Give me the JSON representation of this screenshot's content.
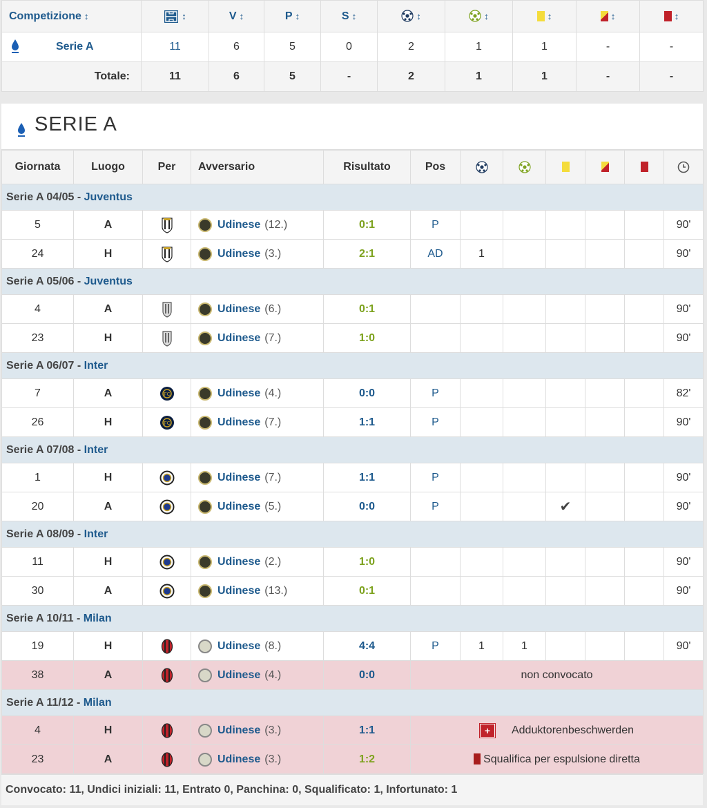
{
  "summary": {
    "headers": [
      "Competizione",
      "V",
      "P",
      "S"
    ],
    "sort_arrow": "↕",
    "rows": [
      {
        "competition": "Serie A",
        "apps": "11",
        "v": "6",
        "p": "5",
        "s": "0",
        "goals": "2",
        "assists": "1",
        "yellow": "1",
        "yellowred": "-",
        "red": "-"
      }
    ],
    "totals": {
      "label": "Totale:",
      "apps": "11",
      "v": "6",
      "p": "5",
      "s": "-",
      "goals": "2",
      "assists": "1",
      "yellow": "1",
      "yellowred": "-",
      "red": "-"
    }
  },
  "detail": {
    "title": "SERIE A",
    "columns": [
      "Giornata",
      "Luogo",
      "Per",
      "Avversario",
      "Risultato",
      "Pos"
    ],
    "seasons": [
      {
        "label": "Serie A 04/05 - ",
        "team": "Juventus",
        "crest": "juventus-old",
        "games": [
          {
            "day": "5",
            "venue": "A",
            "opp": "Udinese",
            "rank": "(12.)",
            "result": "0:1",
            "rclass": "win",
            "pos": "P",
            "goals": "",
            "assists": "",
            "yellow": "",
            "mins": "90'"
          },
          {
            "day": "24",
            "venue": "H",
            "opp": "Udinese",
            "rank": "(3.)",
            "result": "2:1",
            "rclass": "win",
            "pos": "AD",
            "goals": "1",
            "assists": "",
            "yellow": "",
            "mins": "90'"
          }
        ]
      },
      {
        "label": "Serie A 05/06 - ",
        "team": "Juventus",
        "crest": "juventus-grey",
        "games": [
          {
            "day": "4",
            "venue": "A",
            "opp": "Udinese",
            "rank": "(6.)",
            "result": "0:1",
            "rclass": "win",
            "pos": "",
            "goals": "",
            "assists": "",
            "yellow": "",
            "mins": "90'"
          },
          {
            "day": "23",
            "venue": "H",
            "opp": "Udinese",
            "rank": "(7.)",
            "result": "1:0",
            "rclass": "win",
            "pos": "",
            "goals": "",
            "assists": "",
            "yellow": "",
            "mins": "90'"
          }
        ]
      },
      {
        "label": "Serie A 06/07 - ",
        "team": "Inter",
        "crest": "inter-dark",
        "games": [
          {
            "day": "7",
            "venue": "A",
            "opp": "Udinese",
            "rank": "(4.)",
            "result": "0:0",
            "rclass": "draw",
            "pos": "P",
            "goals": "",
            "assists": "",
            "yellow": "",
            "mins": "82'"
          },
          {
            "day": "26",
            "venue": "H",
            "opp": "Udinese",
            "rank": "(7.)",
            "result": "1:1",
            "rclass": "draw",
            "pos": "P",
            "goals": "",
            "assists": "",
            "yellow": "",
            "mins": "90'"
          }
        ]
      },
      {
        "label": "Serie A 07/08 - ",
        "team": "Inter",
        "crest": "inter-light",
        "games": [
          {
            "day": "1",
            "venue": "H",
            "opp": "Udinese",
            "rank": "(7.)",
            "result": "1:1",
            "rclass": "draw",
            "pos": "P",
            "goals": "",
            "assists": "",
            "yellow": "",
            "mins": "90'"
          },
          {
            "day": "20",
            "venue": "A",
            "opp": "Udinese",
            "rank": "(5.)",
            "result": "0:0",
            "rclass": "draw",
            "pos": "P",
            "goals": "",
            "assists": "",
            "yellow": "✔",
            "mins": "90'"
          }
        ]
      },
      {
        "label": "Serie A 08/09 - ",
        "team": "Inter",
        "crest": "inter-light",
        "games": [
          {
            "day": "11",
            "venue": "H",
            "opp": "Udinese",
            "rank": "(2.)",
            "result": "1:0",
            "rclass": "win",
            "pos": "",
            "goals": "",
            "assists": "",
            "yellow": "",
            "mins": "90'"
          },
          {
            "day": "30",
            "venue": "A",
            "opp": "Udinese",
            "rank": "(13.)",
            "result": "0:1",
            "rclass": "win",
            "pos": "",
            "goals": "",
            "assists": "",
            "yellow": "",
            "mins": "90'"
          }
        ]
      },
      {
        "label": "Serie A 10/11 - ",
        "team": "Milan",
        "crest": "milan",
        "games": [
          {
            "day": "19",
            "venue": "H",
            "opp": "Udinese",
            "rank": "(8.)",
            "result": "4:4",
            "rclass": "draw",
            "pos": "P",
            "goals": "1",
            "assists": "1",
            "yellow": "",
            "mins": "90'",
            "light": true
          },
          {
            "day": "38",
            "venue": "A",
            "opp": "Udinese",
            "rank": "(4.)",
            "result": "0:0",
            "rclass": "draw",
            "missed": true,
            "note": "non convocato",
            "light": true
          }
        ]
      },
      {
        "label": "Serie A 11/12 - ",
        "team": "Milan",
        "crest": "milan",
        "games": [
          {
            "day": "4",
            "venue": "H",
            "opp": "Udinese",
            "rank": "(3.)",
            "result": "1:1",
            "rclass": "draw",
            "missed": true,
            "note": "Adduktorenbeschwerden",
            "note_icon": "injury",
            "light": true
          },
          {
            "day": "23",
            "venue": "A",
            "opp": "Udinese",
            "rank": "(3.)",
            "result": "1:2",
            "rclass": "win",
            "missed": true,
            "note": "Squalifica per espulsione diretta",
            "note_icon": "red-card",
            "light": true
          }
        ]
      }
    ],
    "footer": "Convocato: 11, Undici iniziali: 11, Entrato 0, Panchina: 0, Squalificato: 1, Infortunato: 1"
  }
}
